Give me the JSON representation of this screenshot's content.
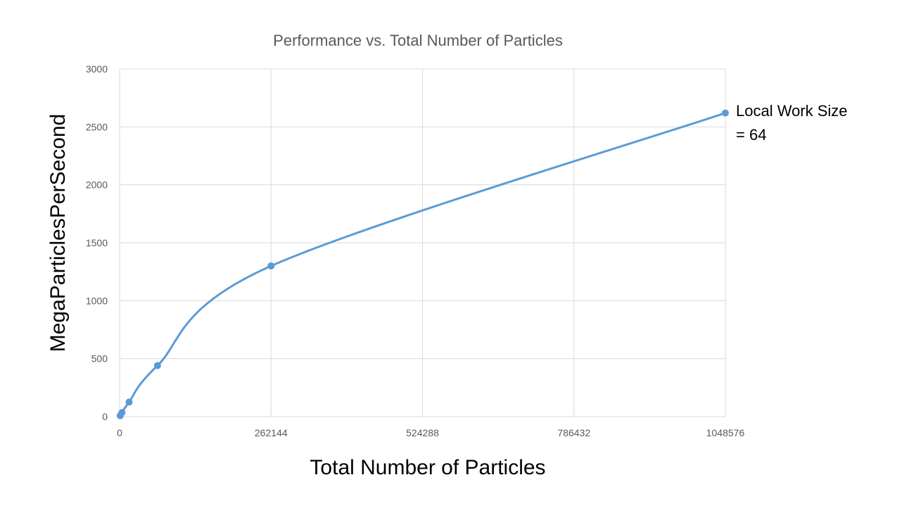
{
  "chart_data": {
    "type": "line",
    "title": "Performance vs. Total Number of Particles",
    "xlabel": "Total Number of Particles",
    "ylabel": "MegaParticlesPerSecond",
    "xlim": [
      0,
      1048576
    ],
    "ylim": [
      0,
      3000
    ],
    "x_ticks": [
      0,
      262144,
      524288,
      786432,
      1048576
    ],
    "x_tick_labels": [
      "0",
      "262144",
      "524288",
      "786432",
      "1048576"
    ],
    "y_ticks": [
      0,
      500,
      1000,
      1500,
      2000,
      2500,
      3000
    ],
    "y_tick_labels": [
      "0",
      "500",
      "1000",
      "1500",
      "2000",
      "2500",
      "3000"
    ],
    "grid": true,
    "legend": "none",
    "series": [
      {
        "name": "Local Work Size = 64",
        "name_lines": [
          "Local Work Size",
          "= 64"
        ],
        "color": "#5B9BD5",
        "x": [
          1024,
          4096,
          16384,
          65536,
          262144,
          1048576
        ],
        "y": [
          8,
          35,
          125,
          440,
          1300,
          2620
        ]
      }
    ]
  }
}
